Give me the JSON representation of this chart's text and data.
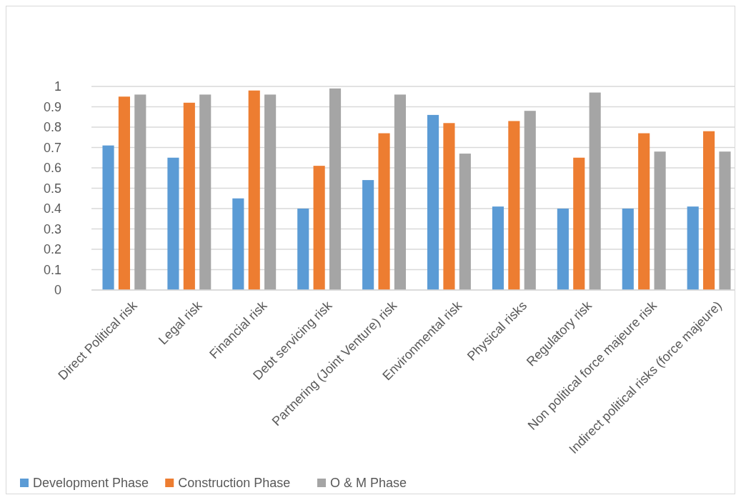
{
  "chart_data": {
    "type": "bar",
    "categories": [
      "Direct Political risk",
      "Legal risk",
      "Financial risk",
      "Debt servicing risk",
      "Partnering (Joint Venture) risk",
      "Environmental risk",
      "Physical risks",
      "Regulatory risk",
      "Non political force majeure risk",
      "Indirect political risks (force majeure)"
    ],
    "series": [
      {
        "name": "Development Phase",
        "color": "#5b9bd5",
        "values": [
          0.71,
          0.65,
          0.45,
          0.4,
          0.54,
          0.86,
          0.41,
          0.4,
          0.4,
          0.41
        ]
      },
      {
        "name": "Construction Phase",
        "color": "#ed7d31",
        "values": [
          0.95,
          0.92,
          0.98,
          0.61,
          0.77,
          0.82,
          0.83,
          0.65,
          0.77,
          0.78
        ]
      },
      {
        "name": "O & M Phase",
        "color": "#a5a5a5",
        "values": [
          0.96,
          0.96,
          0.96,
          0.99,
          0.96,
          0.67,
          0.88,
          0.97,
          0.68,
          0.68
        ]
      }
    ],
    "ylim": [
      0,
      1
    ],
    "yticks": [
      0,
      0.1,
      0.2,
      0.3,
      0.4,
      0.5,
      0.6,
      0.7,
      0.8,
      0.9,
      1
    ],
    "grid": "y",
    "legend": "bottom left"
  }
}
